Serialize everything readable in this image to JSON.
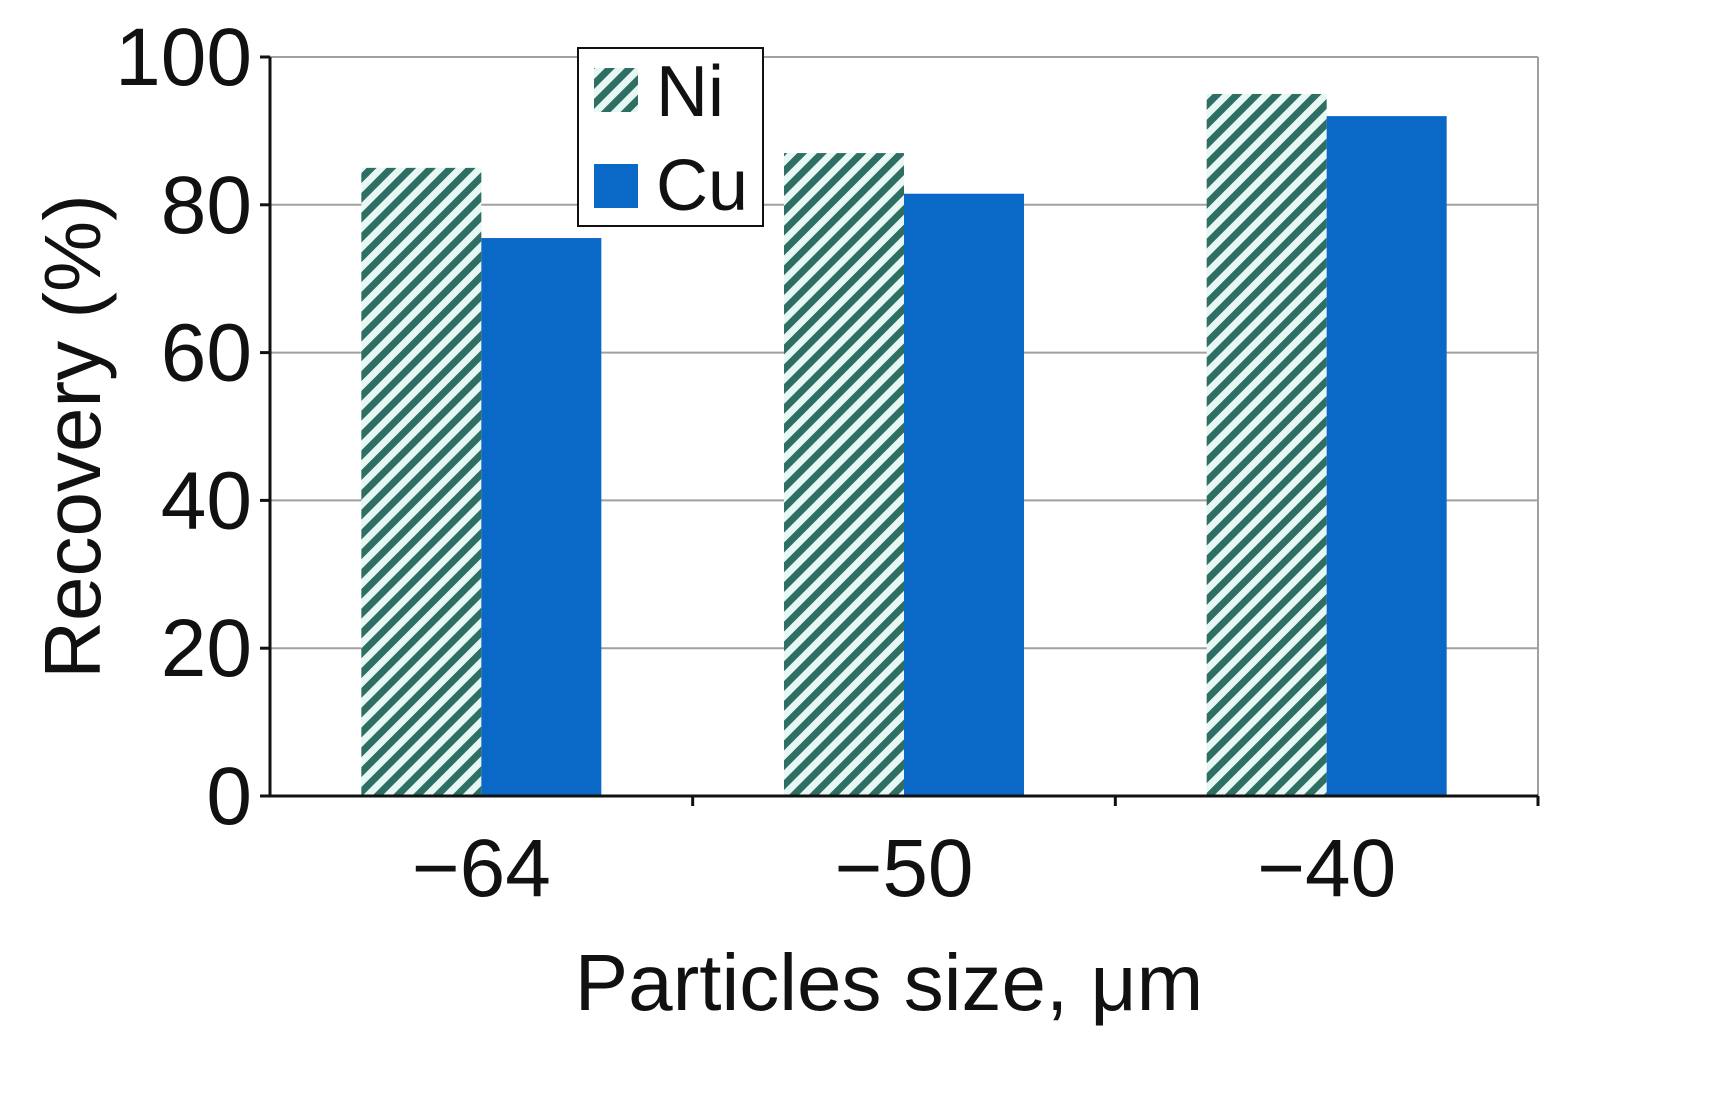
{
  "chart_data": {
    "type": "bar",
    "title": "",
    "xlabel": "Particles size,  μm",
    "ylabel": "Recovery (%)",
    "categories": [
      "−64",
      "−50",
      "−40"
    ],
    "series": [
      {
        "name": "Ni",
        "values": [
          85,
          87,
          95
        ],
        "style": "hatched",
        "color": "#2f6f63",
        "bg": "#e6f7f4"
      },
      {
        "name": "Cu",
        "values": [
          75.5,
          81.5,
          92
        ],
        "style": "solid",
        "color": "#0a69c6"
      }
    ],
    "ylim": [
      0,
      100
    ],
    "yticks": [
      0,
      20,
      40,
      60,
      80,
      100
    ],
    "grid": true,
    "legend_position": "top-center"
  }
}
